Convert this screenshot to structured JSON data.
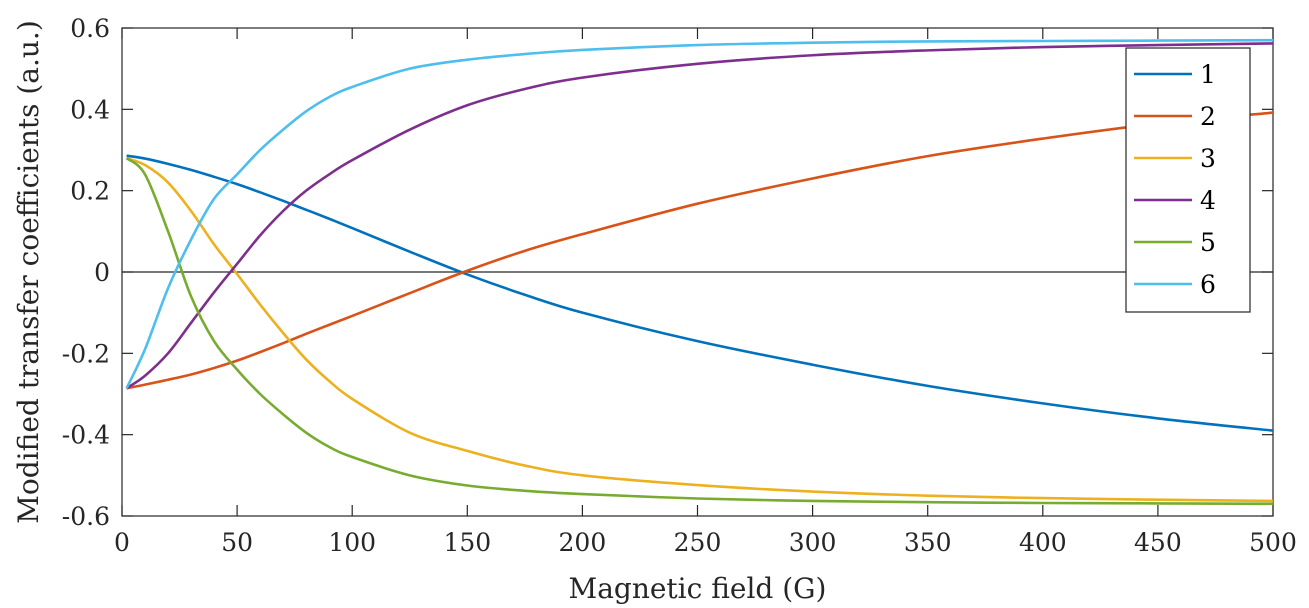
{
  "chart_data": {
    "type": "line",
    "title": "",
    "xlabel": "Magnetic field (G)",
    "ylabel": "Modified transfer coefficients (a.u.)",
    "xlim": [
      0,
      500
    ],
    "ylim": [
      -0.6,
      0.6
    ],
    "xticks": [
      0,
      50,
      100,
      150,
      200,
      250,
      300,
      350,
      400,
      450,
      500
    ],
    "xtick_labels": [
      "0",
      "50",
      "100",
      "150",
      "200",
      "250",
      "300",
      "350",
      "400",
      "450",
      "500"
    ],
    "yticks": [
      -0.6,
      -0.4,
      -0.2,
      0,
      0.2,
      0.4,
      0.6
    ],
    "ytick_labels": [
      "-0.6",
      "-0.4",
      "-0.2",
      "0",
      "0.2",
      "0.4",
      "0.6"
    ],
    "grid": false,
    "zero_line": true,
    "legend_position": "top-right",
    "x": [
      2,
      10,
      20,
      30,
      40,
      50,
      60,
      70,
      80,
      90,
      100,
      125,
      150,
      175,
      200,
      250,
      300,
      350,
      400,
      450,
      500
    ],
    "series": [
      {
        "name": "1",
        "color": "#0072BD",
        "values": [
          0.286,
          0.279,
          0.266,
          0.251,
          0.234,
          0.216,
          0.196,
          0.175,
          0.153,
          0.131,
          0.108,
          0.05,
          -0.006,
          -0.056,
          -0.1,
          -0.17,
          -0.228,
          -0.28,
          -0.323,
          -0.36,
          -0.39
        ]
      },
      {
        "name": "2",
        "color": "#D95319",
        "values": [
          -0.286,
          -0.277,
          -0.265,
          -0.252,
          -0.236,
          -0.218,
          -0.197,
          -0.175,
          -0.152,
          -0.13,
          -0.108,
          -0.052,
          0.003,
          0.052,
          0.093,
          0.168,
          0.23,
          0.285,
          0.328,
          0.365,
          0.392
        ]
      },
      {
        "name": "3",
        "color": "#EDB120",
        "values": [
          0.28,
          0.263,
          0.22,
          0.15,
          0.068,
          -0.005,
          -0.08,
          -0.15,
          -0.215,
          -0.268,
          -0.312,
          -0.395,
          -0.44,
          -0.476,
          -0.5,
          -0.524,
          -0.54,
          -0.55,
          -0.556,
          -0.56,
          -0.563
        ]
      },
      {
        "name": "4",
        "color": "#7E2F8E",
        "values": [
          -0.286,
          -0.255,
          -0.2,
          -0.125,
          -0.05,
          0.02,
          0.09,
          0.15,
          0.2,
          0.24,
          0.275,
          0.35,
          0.41,
          0.45,
          0.478,
          0.512,
          0.533,
          0.545,
          0.553,
          0.558,
          0.562
        ]
      },
      {
        "name": "5",
        "color": "#77AC30",
        "values": [
          0.28,
          0.24,
          0.1,
          -0.06,
          -0.17,
          -0.24,
          -0.3,
          -0.35,
          -0.395,
          -0.43,
          -0.455,
          -0.5,
          -0.525,
          -0.538,
          -0.546,
          -0.557,
          -0.563,
          -0.566,
          -0.568,
          -0.569,
          -0.57
        ]
      },
      {
        "name": "6",
        "color": "#4DBEEE",
        "values": [
          -0.286,
          -0.19,
          -0.04,
          0.08,
          0.18,
          0.24,
          0.3,
          0.35,
          0.395,
          0.43,
          0.455,
          0.5,
          0.522,
          0.536,
          0.546,
          0.558,
          0.564,
          0.567,
          0.568,
          0.569,
          0.57
        ]
      }
    ]
  }
}
